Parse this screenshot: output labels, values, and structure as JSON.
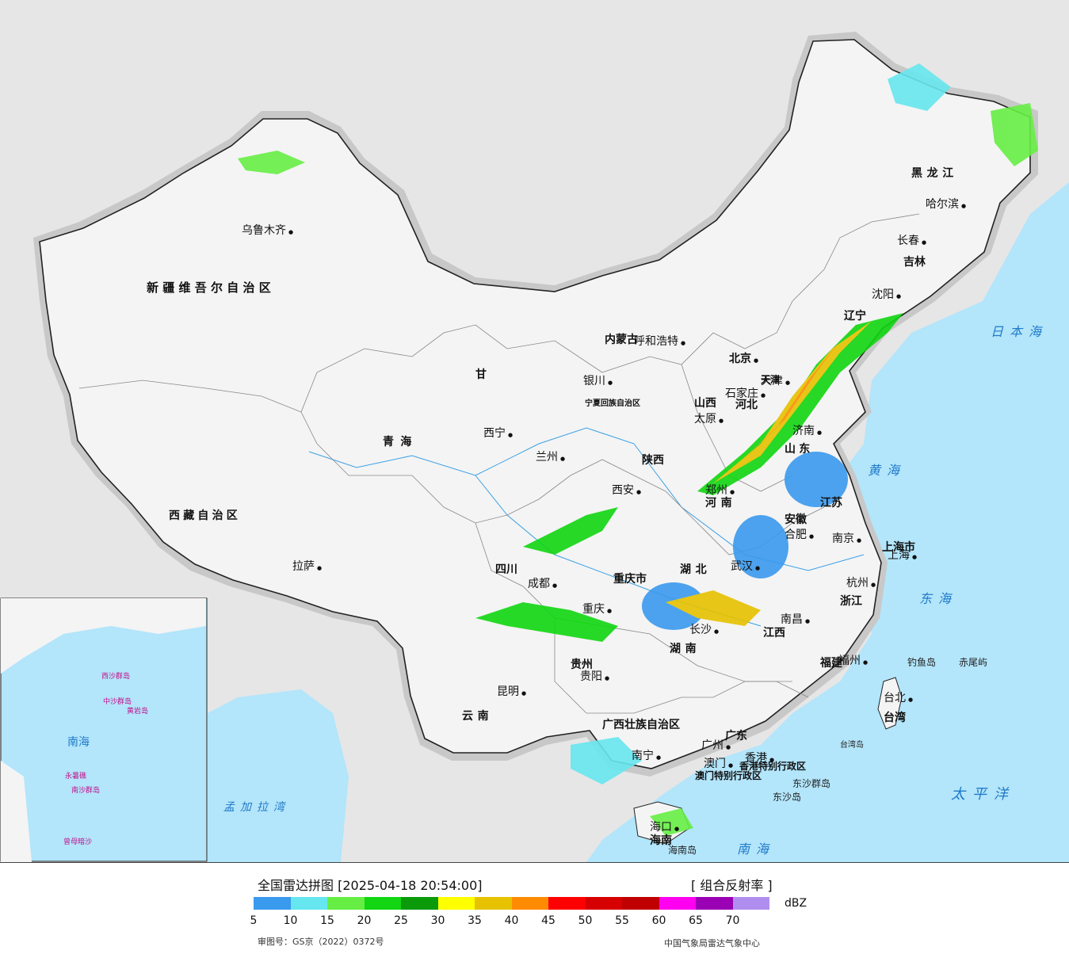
{
  "map": {
    "provinces": [
      "新疆维吾尔自治区",
      "西藏自治区",
      "青海",
      "甘",
      "内蒙古",
      "宁夏回族自治区",
      "陕西",
      "山西",
      "河北",
      "北京",
      "天津",
      "辽宁",
      "吉林",
      "黑龙江",
      "山东",
      "河南",
      "江苏",
      "安徽",
      "上海市",
      "浙江",
      "江西",
      "湖北",
      "湖南",
      "四川",
      "重庆市",
      "贵州",
      "云南",
      "广西壮族自治区",
      "广东",
      "福建",
      "台湾",
      "海南",
      "香港特别行政区",
      "澳门特别行政区"
    ],
    "cities": [
      "乌鲁木齐",
      "拉萨",
      "西宁",
      "兰州",
      "银川",
      "呼和浩特",
      "北京",
      "天津",
      "石家庄",
      "太原",
      "济南",
      "西安",
      "郑州",
      "合肥",
      "南京",
      "上海",
      "杭州",
      "武汉",
      "南昌",
      "长沙",
      "福州",
      "台北",
      "成都",
      "重庆",
      "贵阳",
      "昆明",
      "南宁",
      "广州",
      "香港",
      "澳门",
      "海口",
      "沈阳",
      "长春",
      "哈尔滨"
    ],
    "seas": [
      "日本海",
      "黄海",
      "东海",
      "太平洋",
      "南海",
      "孟加拉湾"
    ],
    "islands": [
      "钓鱼岛",
      "赤尾屿",
      "东沙群岛",
      "东沙岛",
      "海南岛",
      "台湾岛"
    ],
    "inset_labels": [
      "西沙群岛",
      "中沙群岛",
      "南沙群岛",
      "南海",
      "黄岩岛",
      "永暑礁",
      "曾母暗沙"
    ]
  },
  "legend": {
    "title": "全国雷达拼图 [2025-04-18 20:54:00]",
    "product": "[ 组合反射率 ]",
    "unit": "dBZ",
    "approval": "审图号：GS京（2022）0372号",
    "source": "中国气象局雷达气象中心",
    "ticks": [
      "5",
      "10",
      "15",
      "20",
      "25",
      "30",
      "35",
      "40",
      "45",
      "50",
      "55",
      "60",
      "65",
      "70"
    ],
    "colors": [
      "#3a9aee",
      "#66e6ee",
      "#66ee44",
      "#11d611",
      "#0a9a0a",
      "#ffff00",
      "#e6c200",
      "#ff8c00",
      "#ff0000",
      "#d60000",
      "#c00000",
      "#ff00f0",
      "#9a00b4",
      "#b08ef0"
    ]
  }
}
